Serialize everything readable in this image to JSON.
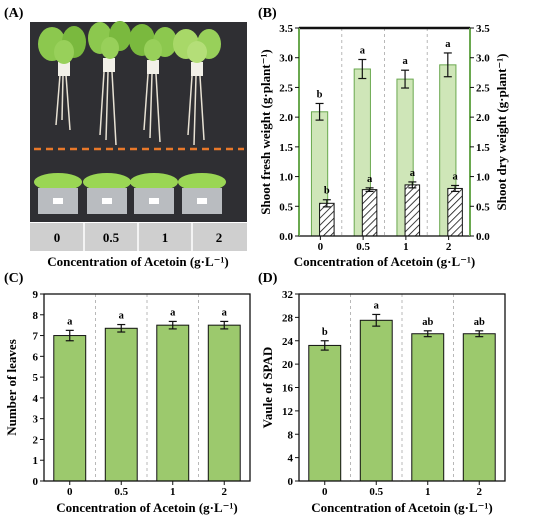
{
  "figure": {
    "panels": [
      {
        "id": "A",
        "label": "(A)"
      },
      {
        "id": "B",
        "label": "(B)"
      },
      {
        "id": "C",
        "label": "(C)"
      },
      {
        "id": "D",
        "label": "(D)"
      }
    ]
  },
  "photo": {
    "treatment_labels": [
      "0",
      "0.5",
      "1",
      "2"
    ],
    "xlabel": "Concentration of Acetoin (g·L⁻¹)",
    "colors": {
      "background": "#2f2f33",
      "leaf": "#7ec24a",
      "dash": "#e8782a"
    }
  },
  "chart_data": [
    {
      "panel": "B",
      "type": "bar",
      "categories": [
        "0",
        "0.5",
        "1",
        "2"
      ],
      "xlabel": "Concentration of Acetoin (g·L⁻¹)",
      "ylabel_left": "Shoot fresh weight (g·plant⁻¹)",
      "ylabel_right": "Shoot dry weight (g·plant⁻¹)",
      "ylim": [
        0,
        3.5
      ],
      "yticks": [
        "0.0",
        "0.5",
        "1.0",
        "1.5",
        "2.0",
        "2.5",
        "3.0",
        "3.5"
      ],
      "grid": false,
      "series": [
        {
          "values": [
            2.09,
            2.81,
            2.64,
            2.88
          ],
          "errors": [
            0.14,
            0.16,
            0.15,
            0.2
          ],
          "significance": [
            "b",
            "a",
            "a",
            "a"
          ],
          "color": "#cfe6b8",
          "edge": "#6aa84f",
          "pattern": "solid"
        },
        {
          "values": [
            0.55,
            0.78,
            0.86,
            0.8
          ],
          "errors": [
            0.06,
            0.03,
            0.05,
            0.05
          ],
          "significance": [
            "b",
            "a",
            "a",
            "a"
          ],
          "color": "#ffffff",
          "edge": "#111111",
          "pattern": "hatch"
        }
      ]
    },
    {
      "panel": "C",
      "type": "bar",
      "categories": [
        "0",
        "0.5",
        "1",
        "2"
      ],
      "xlabel": "Concentration of Acetoin (g·L⁻¹)",
      "ylabel": "Number of leaves",
      "ylim": [
        0,
        9
      ],
      "yticks": [
        "0",
        "1",
        "2",
        "3",
        "4",
        "5",
        "6",
        "7",
        "8",
        "9"
      ],
      "grid": false,
      "series": [
        {
          "values": [
            7.0,
            7.35,
            7.5,
            7.5
          ],
          "errors": [
            0.25,
            0.18,
            0.18,
            0.18
          ],
          "significance": [
            "a",
            "a",
            "a",
            "a"
          ],
          "color": "#9cc96d",
          "edge": "#111111"
        }
      ]
    },
    {
      "panel": "D",
      "type": "bar",
      "categories": [
        "0",
        "0.5",
        "1",
        "2"
      ],
      "xlabel": "Concentration of Acetoin (g·L⁻¹)",
      "ylabel": "Vaule of SPAD",
      "ylim": [
        0,
        32
      ],
      "yticks": [
        "0",
        "4",
        "8",
        "12",
        "16",
        "20",
        "24",
        "28",
        "32"
      ],
      "grid": false,
      "series": [
        {
          "values": [
            23.2,
            27.5,
            25.2,
            25.2
          ],
          "errors": [
            0.8,
            1.0,
            0.5,
            0.5
          ],
          "significance": [
            "b",
            "a",
            "ab",
            "ab"
          ],
          "color": "#9cc96d",
          "edge": "#111111"
        }
      ]
    }
  ]
}
